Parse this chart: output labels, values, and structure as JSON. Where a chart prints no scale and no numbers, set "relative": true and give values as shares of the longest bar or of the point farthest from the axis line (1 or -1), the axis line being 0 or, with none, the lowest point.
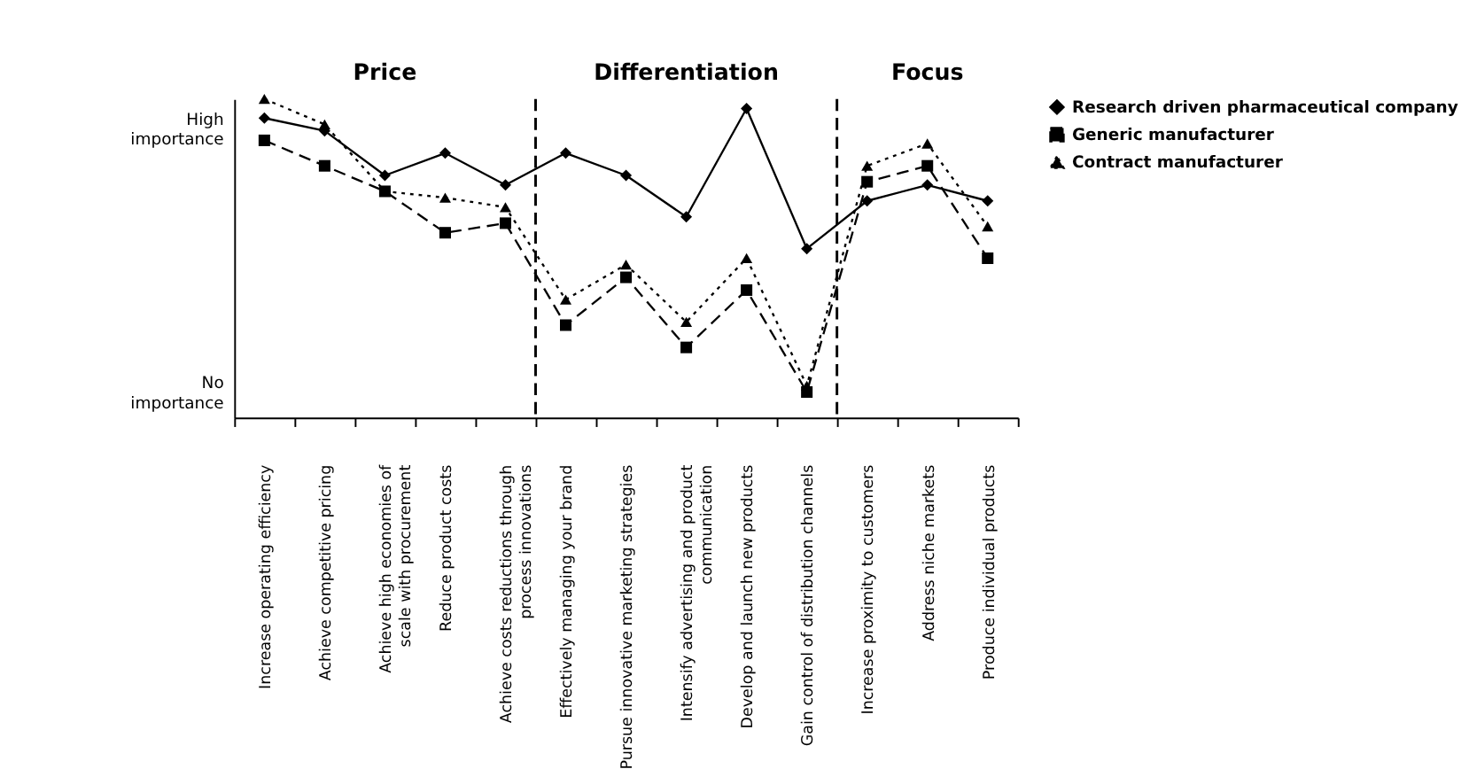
{
  "chart_data": {
    "type": "line",
    "relative": true,
    "categories": [
      "Increase operating efficiency",
      "Achieve competitive pricing",
      "Achieve high economies of\nscale with procurement",
      "Reduce product costs",
      "Achieve costs reductions through\nprocess innovations",
      "Effectively managing your brand",
      "Pursue innovative marketing strategies",
      "Intensify advertising and product\ncommunication",
      "Develop and launch new products",
      "Gain control of distribution channels",
      "Increase proximity to customers",
      "Address niche markets",
      "Produce individual products"
    ],
    "series": [
      {
        "name": "Research driven pharmaceutical company",
        "color": "#000000",
        "marker": "diamond",
        "line_style": "solid",
        "values": [
          0.94,
          0.9,
          0.76,
          0.83,
          0.73,
          0.83,
          0.76,
          0.63,
          0.97,
          0.53,
          0.68,
          0.73,
          0.68
        ]
      },
      {
        "name": "Generic manufacturer",
        "color": "#000000",
        "marker": "square",
        "line_style": "dashed",
        "values": [
          0.87,
          0.79,
          0.71,
          0.58,
          0.61,
          0.29,
          0.44,
          0.22,
          0.4,
          0.08,
          0.74,
          0.79,
          0.5
        ]
      },
      {
        "name": "Contract manufacturer",
        "color": "#000000",
        "marker": "triangle",
        "line_style": "dotted",
        "values": [
          1.0,
          0.92,
          0.71,
          0.69,
          0.66,
          0.37,
          0.48,
          0.3,
          0.5,
          0.1,
          0.79,
          0.86,
          0.6
        ]
      }
    ],
    "annotations": [
      "Price",
      "Differentiation",
      "Focus",
      "High importance",
      "No importance"
    ],
    "legend": "right",
    "grid": false
  }
}
